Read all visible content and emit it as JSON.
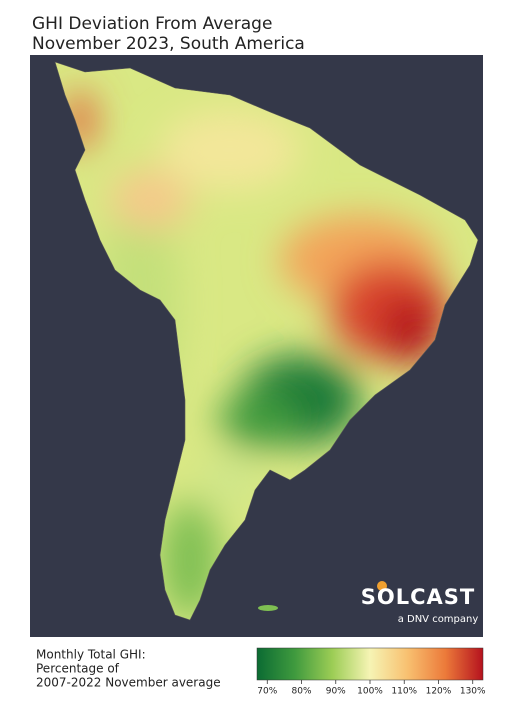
{
  "title": [
    "GHI Deviation From Average",
    "November 2023, South America"
  ],
  "logo": {
    "name": "SOLCAST",
    "tagline": "a DNV company"
  },
  "legend": {
    "label": [
      "Monthly Total GHI:",
      "Percentage of",
      "2007-2022 November average"
    ],
    "colorbar": {
      "lim": [
        67,
        133
      ],
      "ticks": [
        {
          "value": 70,
          "label": "70%"
        },
        {
          "value": 80,
          "label": "80%"
        },
        {
          "value": 90,
          "label": "90%"
        },
        {
          "value": 100,
          "label": "100%"
        },
        {
          "value": 110,
          "label": "110%"
        },
        {
          "value": 120,
          "label": "120%"
        },
        {
          "value": 130,
          "label": "130%"
        }
      ],
      "colors": [
        "#0b6b33",
        "#3f9a3e",
        "#9ccd55",
        "#f6f4b4",
        "#f8c070",
        "#ec7a3a",
        "#b5121e"
      ]
    }
  }
}
